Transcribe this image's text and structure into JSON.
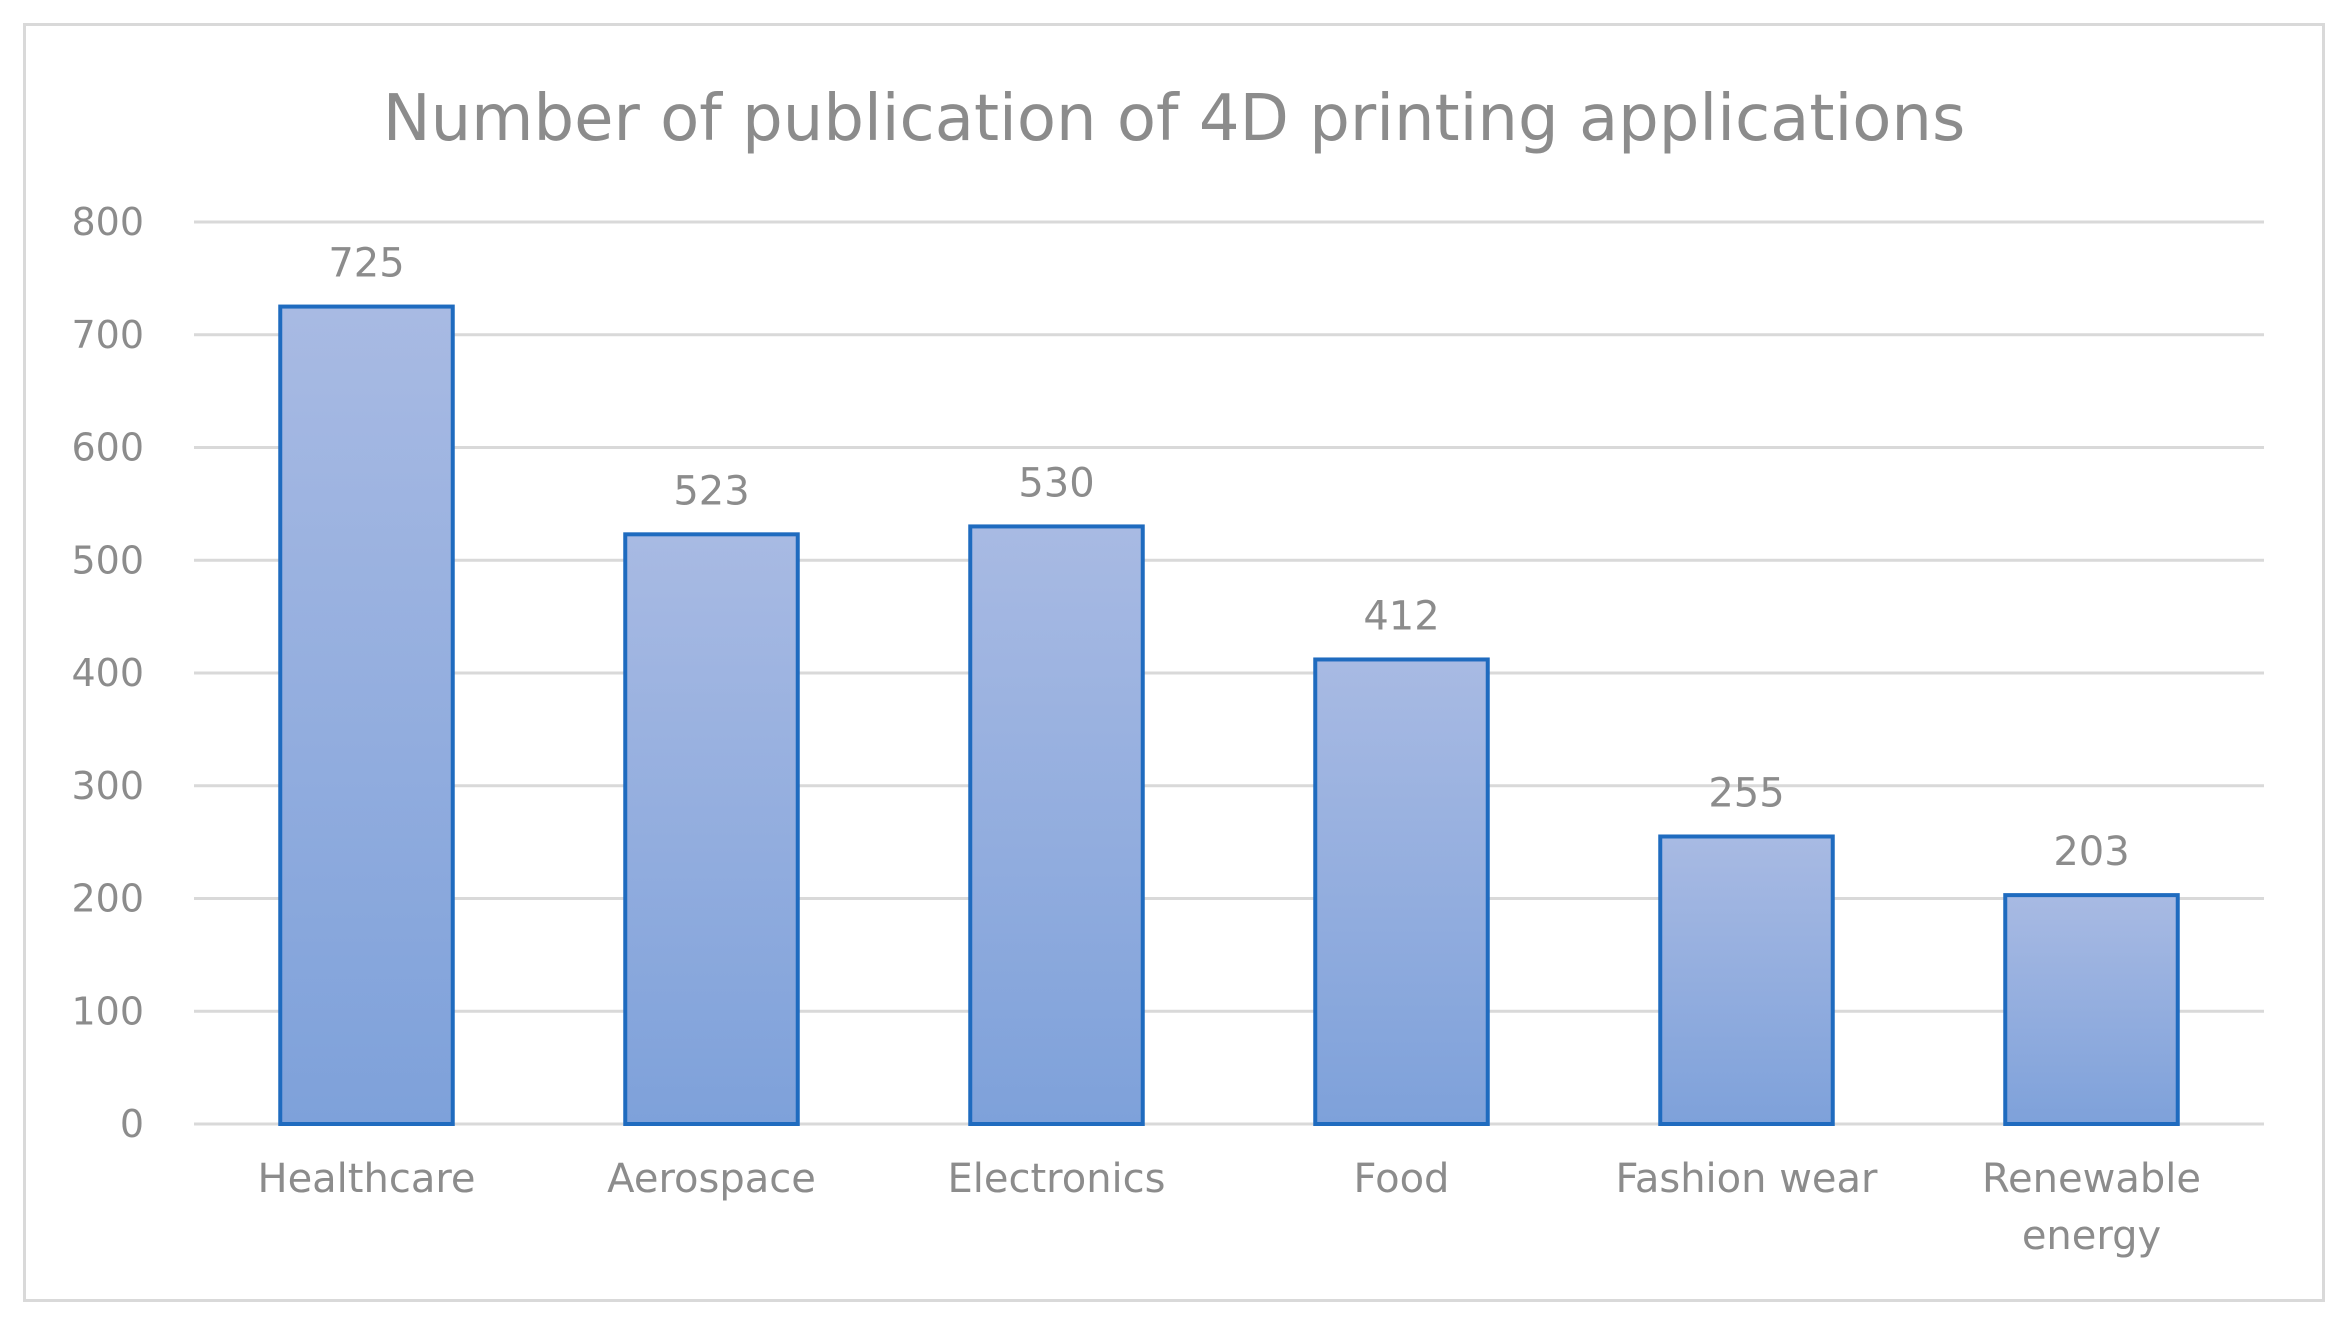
{
  "chart_data": {
    "type": "bar",
    "title": "Number of publication of 4D printing applications",
    "xlabel": "",
    "ylabel": "",
    "categories": [
      "Healthcare",
      "Aerospace",
      "Electronics",
      "Food",
      "Fashion wear",
      "Renewable energy"
    ],
    "category_lines": [
      [
        "Healthcare"
      ],
      [
        "Aerospace"
      ],
      [
        "Electronics"
      ],
      [
        "Food"
      ],
      [
        "Fashion wear"
      ],
      [
        "Renewable",
        "energy"
      ]
    ],
    "values": [
      725,
      523,
      530,
      412,
      255,
      203
    ],
    "data_labels": [
      "725",
      "523",
      "530",
      "412",
      "255",
      "203"
    ],
    "ylim": [
      0,
      800
    ],
    "yticks": [
      0,
      100,
      200,
      300,
      400,
      500,
      600,
      700,
      800
    ],
    "ytick_labels": [
      "0",
      "100",
      "200",
      "300",
      "400",
      "500",
      "600",
      "700",
      "800"
    ],
    "grid": true,
    "legend": "none"
  },
  "colors": {
    "bar_fill_top": "#a8bae3",
    "bar_fill_bottom": "#7ea1da",
    "bar_stroke": "#1f6bbf",
    "grid": "#d9d9d9",
    "text": "#8c8c8c",
    "frame": "#d9d9d9"
  }
}
